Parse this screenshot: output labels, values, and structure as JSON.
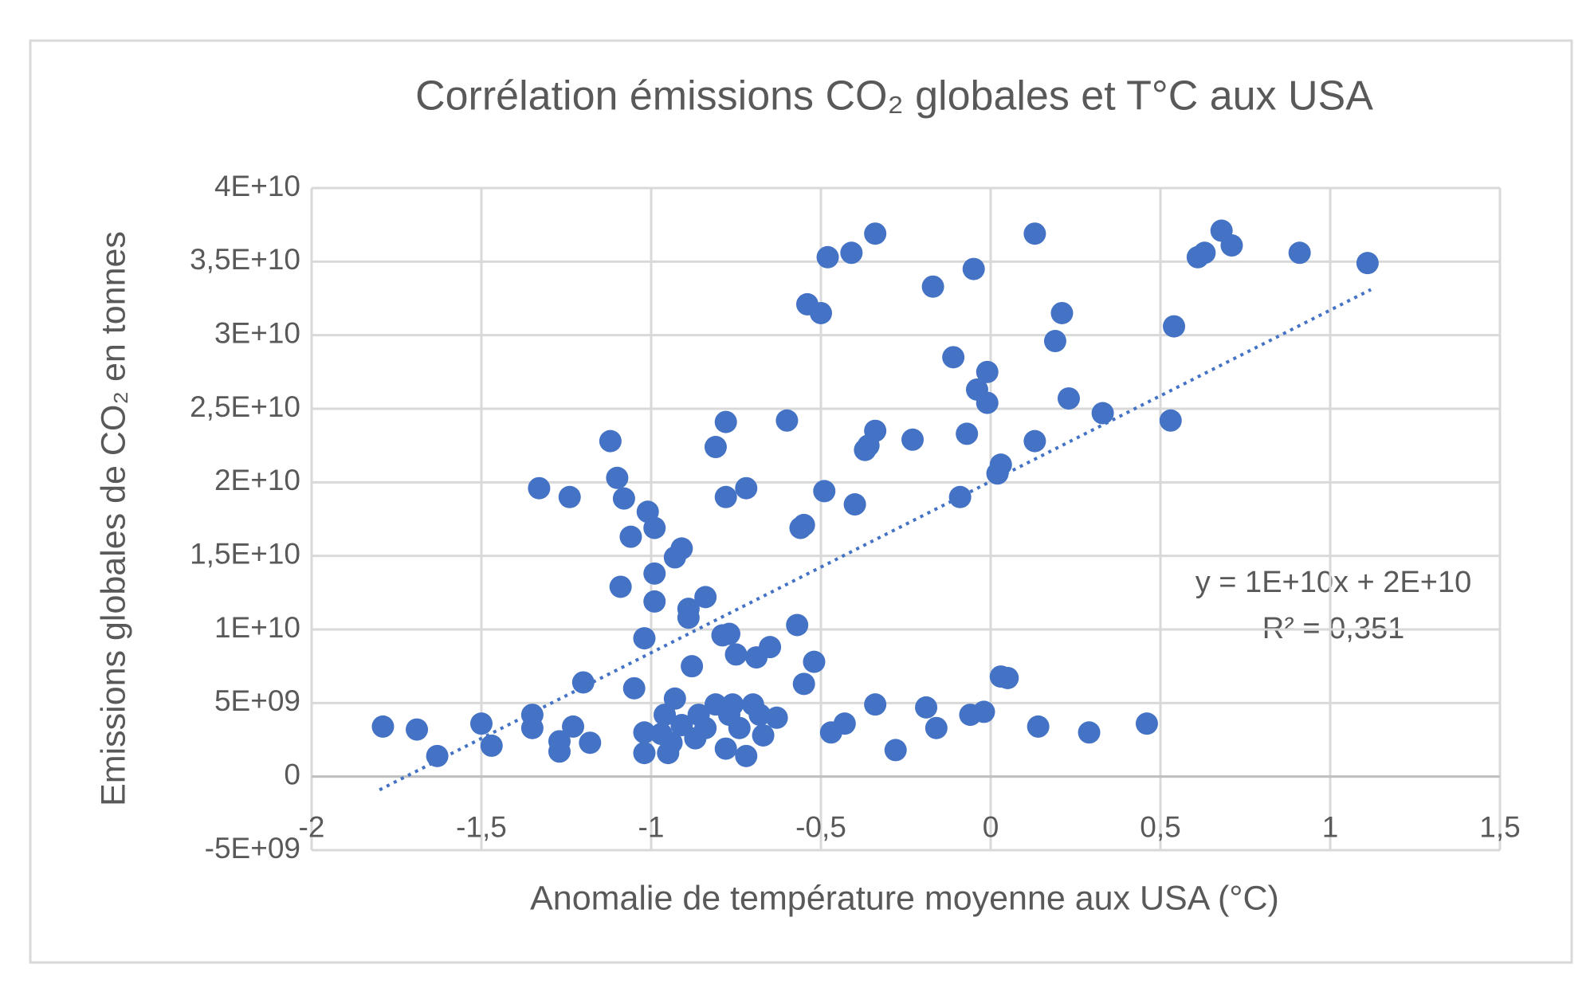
{
  "chart_data": {
    "type": "scatter",
    "title": "Corrélation émissions CO₂ globales et T°C aux USA",
    "xlabel": "Anomalie de température moyenne aux USA (°C)",
    "ylabel": "Emissions globales de CO₂ en tonnes",
    "xlim": [
      -2,
      1.5
    ],
    "xticks": [
      -2,
      {
        "value": -1.5,
        "label": "-1,5"
      },
      -1,
      {
        "value": -0.5,
        "label": "-0,5"
      },
      0,
      {
        "value": 0.5,
        "label": "0,5"
      },
      1,
      {
        "value": 1.5,
        "label": "1,5"
      }
    ],
    "ylim": [
      -5000000000,
      40000000000
    ],
    "yticks": [
      {
        "value": -5000000000,
        "label": "-5E+09"
      },
      0,
      {
        "value": 5000000000,
        "label": "5E+09"
      },
      {
        "value": 10000000000,
        "label": "1E+10"
      },
      {
        "value": 15000000000,
        "label": "1,5E+10"
      },
      {
        "value": 20000000000,
        "label": "2E+10"
      },
      {
        "value": 25000000000,
        "label": "2,5E+10"
      },
      {
        "value": 30000000000,
        "label": "3E+10"
      },
      {
        "value": 35000000000,
        "label": "3,5E+10"
      },
      {
        "value": 40000000000,
        "label": "4E+10"
      }
    ],
    "grid": true,
    "series": [
      {
        "color": "#4472c4",
        "x": [
          -1.79,
          -1.69,
          -1.63,
          -1.5,
          -1.47,
          -1.35,
          -1.35,
          -1.33,
          -1.27,
          -1.27,
          -1.24,
          -1.23,
          -1.2,
          -1.18,
          -1.12,
          -1.1,
          -1.09,
          -1.08,
          -1.06,
          -1.05,
          -1.02,
          -1.02,
          -1.02,
          -1.01,
          -0.99,
          -0.99,
          -0.99,
          -0.97,
          -0.96,
          -0.95,
          -0.94,
          -0.93,
          -0.93,
          -0.91,
          -0.91,
          -0.89,
          -0.89,
          -0.88,
          -0.87,
          -0.86,
          -0.84,
          -0.84,
          -0.81,
          -0.81,
          -0.79,
          -0.78,
          -0.78,
          -0.78,
          -0.77,
          -0.77,
          -0.76,
          -0.75,
          -0.74,
          -0.72,
          -0.72,
          -0.7,
          -0.69,
          -0.68,
          -0.67,
          -0.65,
          -0.63,
          -0.6,
          -0.57,
          -0.56,
          -0.55,
          -0.55,
          -0.54,
          -0.52,
          -0.5,
          -0.49,
          -0.48,
          -0.47,
          -0.43,
          -0.41,
          -0.4,
          -0.37,
          -0.36,
          -0.34,
          -0.34,
          -0.34,
          -0.28,
          -0.23,
          -0.19,
          -0.17,
          -0.16,
          -0.11,
          -0.09,
          -0.07,
          -0.06,
          -0.05,
          -0.04,
          -0.02,
          -0.01,
          -0.01,
          0.02,
          0.03,
          0.03,
          0.05,
          0.13,
          0.13,
          0.14,
          0.19,
          0.21,
          0.23,
          0.29,
          0.33,
          0.46,
          0.53,
          0.54,
          0.61,
          0.63,
          0.68,
          0.71,
          0.91,
          1.11
        ],
        "values": [
          3400000000,
          3200000000,
          1400000000,
          3600000000,
          2100000000,
          4200000000,
          3300000000,
          19600000000,
          2400000000,
          1700000000,
          19000000000,
          3400000000,
          6400000000,
          2300000000,
          22800000000,
          20300000000,
          12900000000,
          18900000000,
          16300000000,
          6000000000,
          3000000000,
          1600000000,
          9400000000,
          18000000000,
          16900000000,
          13800000000,
          11900000000,
          2900000000,
          4200000000,
          1600000000,
          2300000000,
          5300000000,
          14900000000,
          15500000000,
          3500000000,
          10800000000,
          11400000000,
          7500000000,
          2600000000,
          4200000000,
          12200000000,
          3300000000,
          4900000000,
          22400000000,
          9600000000,
          24100000000,
          19000000000,
          1900000000,
          4200000000,
          9700000000,
          4900000000,
          8300000000,
          3300000000,
          19600000000,
          1400000000,
          4900000000,
          8100000000,
          4200000000,
          2800000000,
          8800000000,
          4000000000,
          24200000000,
          10300000000,
          16900000000,
          6300000000,
          17100000000,
          32100000000,
          7800000000,
          31500000000,
          19400000000,
          35300000000,
          3000000000,
          3600000000,
          35600000000,
          18500000000,
          22200000000,
          22500000000,
          23500000000,
          4900000000,
          36900000000,
          1800000000,
          22900000000,
          4700000000,
          33300000000,
          3300000000,
          28500000000,
          19000000000,
          23300000000,
          4200000000,
          34500000000,
          26300000000,
          4400000000,
          27500000000,
          25400000000,
          20600000000,
          21200000000,
          6800000000,
          6700000000,
          22800000000,
          36900000000,
          3400000000,
          29600000000,
          31500000000,
          25700000000,
          3000000000,
          24700000000,
          3600000000,
          24200000000,
          30600000000,
          35300000000,
          35600000000,
          37100000000,
          36100000000,
          35600000000,
          34900000000
        ]
      }
    ],
    "trendline": {
      "x": [
        -1.8,
        1.12
      ],
      "values": [
        -900000000,
        33100000000
      ],
      "style": "dotted"
    },
    "annotations": [
      "y = 1E+10x + 2E+10",
      "R² = 0,351"
    ]
  }
}
